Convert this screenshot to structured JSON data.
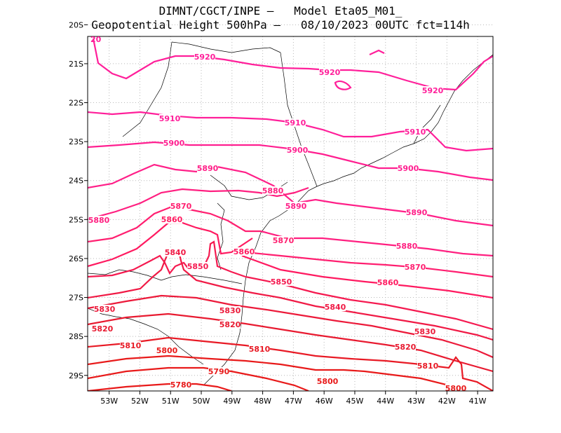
{
  "title_line1": "DIMNT/CGCT/INPE –   Model Eta05_M01_",
  "title_line2": "Geopotential Height 500hPa –   08/10/2023 00UTC fct=114h",
  "map": {
    "lon_range": [
      -53.7,
      -40.5
    ],
    "lat_range": [
      -29.4,
      -20.3
    ],
    "lon_ticks": [
      "53W",
      "52W",
      "51W",
      "50W",
      "49W",
      "48W",
      "47W",
      "46W",
      "45W",
      "44W",
      "43W",
      "42W",
      "41W"
    ],
    "lat_ticks": [
      "20S",
      "21S",
      "22S",
      "23S",
      "24S",
      "25S",
      "26S",
      "27S",
      "28S",
      "29S"
    ],
    "corner_label": "20"
  },
  "contours": [
    {
      "level": 5920,
      "color": "#ff1f9a",
      "labels": [
        "5920",
        "5920",
        "5920"
      ]
    },
    {
      "level": 5910,
      "color": "#ff1f9a",
      "labels": [
        "5910",
        "5910",
        "5910"
      ]
    },
    {
      "level": 5900,
      "color": "#ff1f90",
      "labels": [
        "5900",
        "5900",
        "5900"
      ]
    },
    {
      "level": 5890,
      "color": "#ff1f88",
      "labels": [
        "5890",
        "5890",
        "5890"
      ]
    },
    {
      "level": 5880,
      "color": "#ff1f80",
      "labels": [
        "5880",
        "5880",
        "5880"
      ]
    },
    {
      "level": 5870,
      "color": "#ff1f70",
      "labels": [
        "5870",
        "5870",
        "5870"
      ]
    },
    {
      "level": 5860,
      "color": "#ff1a60",
      "labels": [
        "5860",
        "5860",
        "5860"
      ]
    },
    {
      "level": 5850,
      "color": "#f51a50",
      "labels": [
        "5850",
        "5850"
      ]
    },
    {
      "level": 5840,
      "color": "#f01a45",
      "labels": [
        "5840",
        "5840"
      ]
    },
    {
      "level": 5830,
      "color": "#ec1a3a",
      "labels": [
        "5830",
        "5830",
        "5830"
      ]
    },
    {
      "level": 5820,
      "color": "#e81a30",
      "labels": [
        "5820",
        "5820",
        "5820"
      ]
    },
    {
      "level": 5810,
      "color": "#e81a25",
      "labels": [
        "5810",
        "5810",
        "5810"
      ]
    },
    {
      "level": 5800,
      "color": "#e81a1a",
      "labels": [
        "5800",
        "5800",
        "5800"
      ]
    },
    {
      "level": 5790,
      "color": "#e81a1a",
      "labels": [
        "5790"
      ]
    },
    {
      "level": 5780,
      "color": "#e81a1a",
      "labels": [
        "5780"
      ]
    }
  ]
}
